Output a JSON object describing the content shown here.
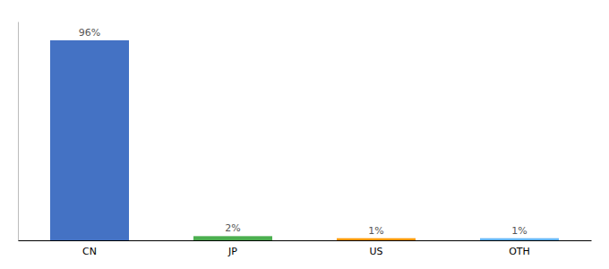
{
  "chart_data": {
    "type": "bar",
    "categories": [
      "CN",
      "JP",
      "US",
      "OTH"
    ],
    "values": [
      96,
      2,
      1,
      1
    ],
    "value_labels": [
      "96%",
      "2%",
      "1%",
      "1%"
    ],
    "colors": [
      "#4472c4",
      "#4caf50",
      "#ff9800",
      "#64b5f6"
    ],
    "ylim": [
      0,
      105
    ],
    "data_labels": true,
    "tick_labels": "x"
  }
}
